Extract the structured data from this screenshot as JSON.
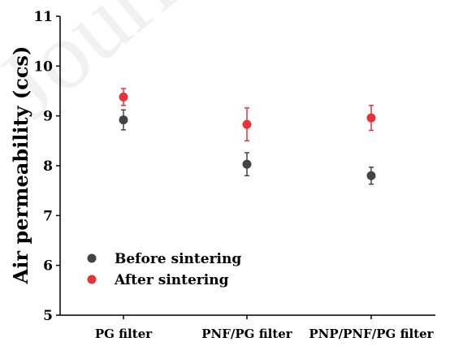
{
  "chart_data": {
    "type": "scatter",
    "categories": [
      "PG filter",
      "PNF/PG filter",
      "PNP/PNF/PG filter"
    ],
    "ylabel": "Air permeability (ccs)",
    "xlabel": "",
    "ylim": [
      5,
      11
    ],
    "yticks": [
      5,
      6,
      7,
      8,
      9,
      10,
      11
    ],
    "grid": false,
    "legend_position": "bottom-left",
    "series": [
      {
        "name": "Before sintering",
        "color": "#444444",
        "values": [
          8.92,
          8.03,
          7.8
        ],
        "errors": [
          0.2,
          0.23,
          0.17
        ]
      },
      {
        "name": "After sintering",
        "color": "#e8323a",
        "values": [
          9.38,
          8.83,
          8.96
        ],
        "errors": [
          0.17,
          0.33,
          0.25
        ]
      }
    ],
    "watermark": "Journal"
  }
}
